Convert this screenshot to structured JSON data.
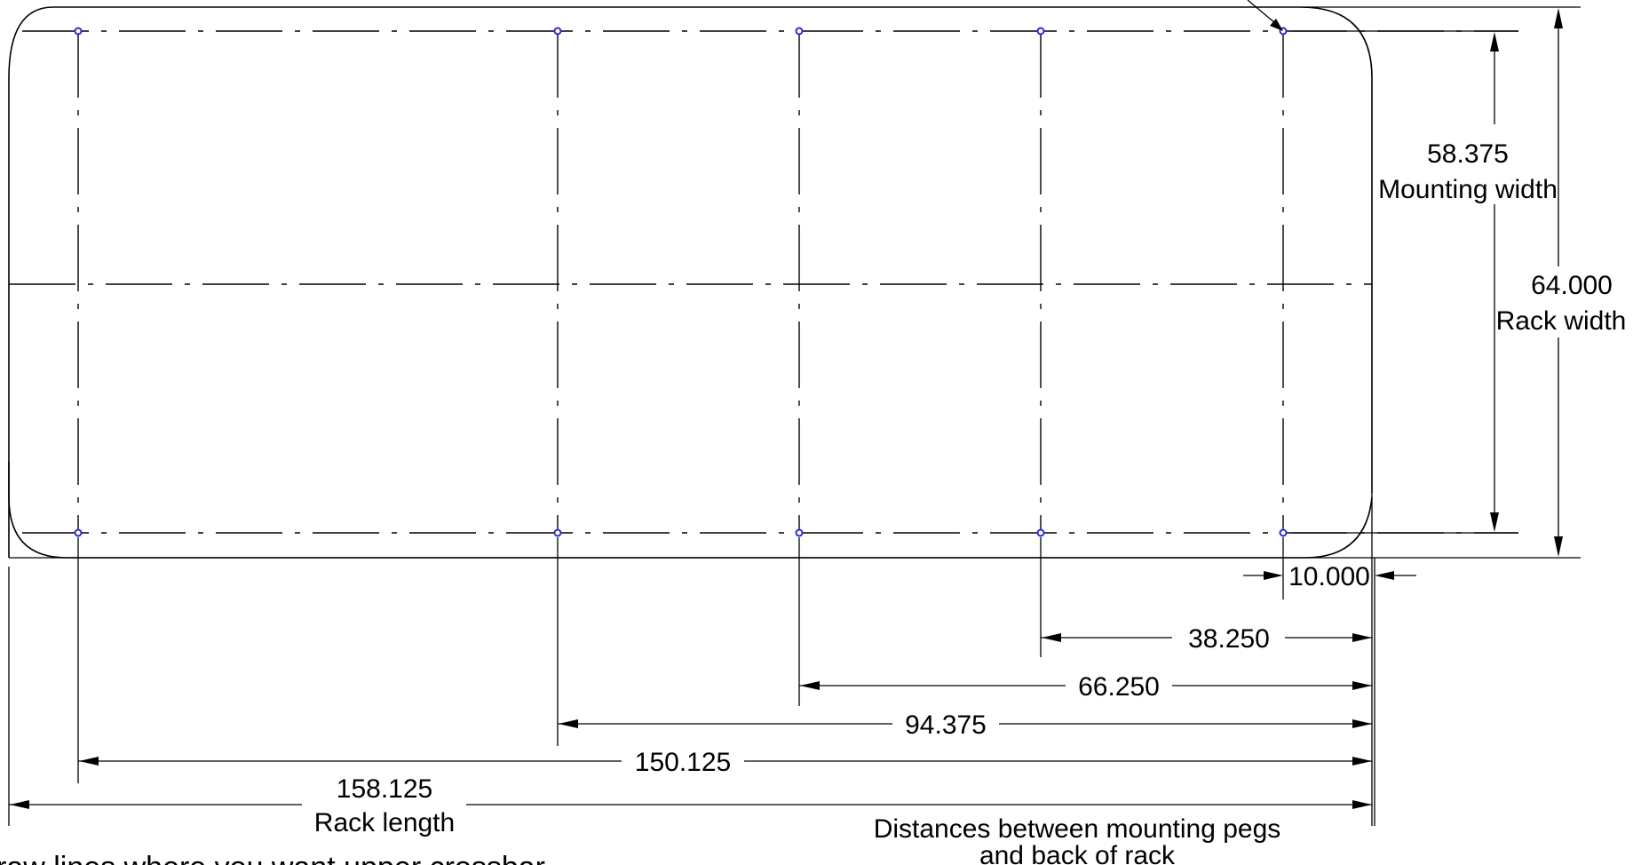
{
  "dimensions": {
    "mounting_width": {
      "value": "58.375",
      "label": "Mounting width"
    },
    "rack_width": {
      "value": "64.000",
      "label": "Rack width"
    },
    "rack_length": {
      "value": "158.125",
      "label": "Rack length"
    },
    "offset_10": {
      "value": "10.000"
    },
    "dist_38": {
      "value": "38.250"
    },
    "dist_66": {
      "value": "66.250"
    },
    "dist_94": {
      "value": "94.375"
    },
    "dist_150": {
      "value": "150.125"
    }
  },
  "notes": {
    "distances_line1": "Distances between mounting pegs",
    "distances_line2": "and back of rack",
    "crossbar_note": "raw lines where you want upper crossbar"
  },
  "colors": {
    "line": "#000000",
    "peg": "#2b2bd6"
  }
}
